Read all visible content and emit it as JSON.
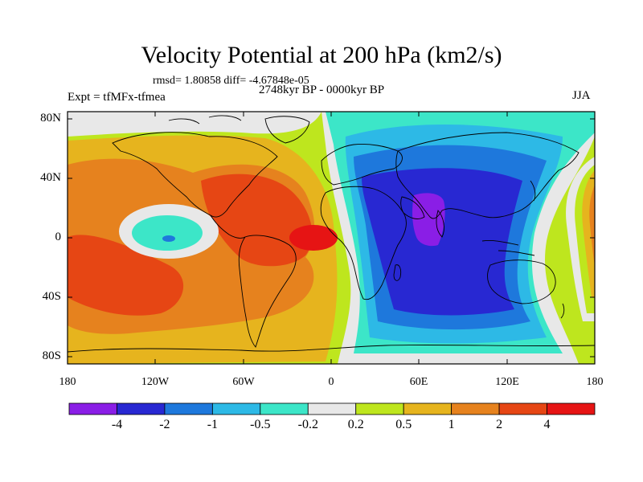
{
  "title": "Velocity Potential at 200 hPa (km2/s)",
  "stats": "rmsd= 1.80858 diff= -4.67848e-05",
  "experiment": "Expt = tfMFx-tfmea",
  "period": "2748kyr BP - 0000kyr BP",
  "season": "JJA",
  "y_axis_labels": [
    "80N",
    "40N",
    "0",
    "40S",
    "80S"
  ],
  "x_axis_labels": [
    "180",
    "120W",
    "60W",
    "0",
    "60E",
    "120E",
    "180"
  ],
  "colorbar": {
    "labels": [
      "-4",
      "-2",
      "-1",
      "-0.5",
      "-0.2",
      "0.2",
      "0.5",
      "1",
      "2",
      "4"
    ],
    "colors": [
      "#8a1ee6",
      "#2828d2",
      "#1e78dc",
      "#2db9e6",
      "#3ce6c8",
      "#e8e8e8",
      "#bee61e",
      "#e6b41e",
      "#e6821e",
      "#e64614",
      "#e61414"
    ]
  },
  "colors": {
    "land_outline": "#000000",
    "frame": "#000000",
    "background": "#ffffff"
  }
}
